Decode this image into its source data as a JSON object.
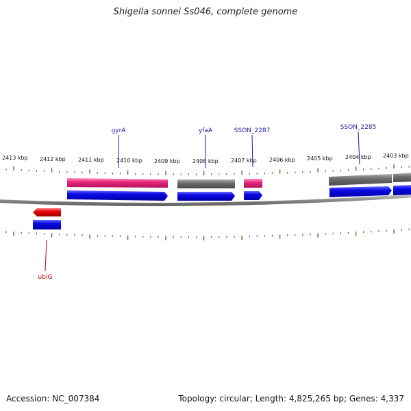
{
  "title": "Shigella sonnei Ss046, complete genome",
  "accession": "Accession: NC_007384",
  "stats": "Topology: circular; Length: 4,825,265 bp; Genes: 4,337",
  "colors": {
    "cds": "#0a0ae6",
    "gene_pink": "#e6287a",
    "gene_gray": "#6e6e6e",
    "gene_red": "#e60000",
    "tick": "#2e7d1e",
    "backbone": "#8c8c8c"
  },
  "ruler": {
    "labels": [
      "2413 kbp",
      "2412 kbp",
      "2411 kbp",
      "2410 kbp",
      "2409 kbp",
      "2408 kbp",
      "2407 kbp",
      "2406 kbp",
      "2405 kbp",
      "2404 kbp",
      "2403 kbp"
    ]
  },
  "genes": [
    {
      "name": "gyrA",
      "strand": "forward",
      "type": "gene",
      "color": "pink"
    },
    {
      "name": "yfaA",
      "strand": "forward",
      "type": "gene",
      "color": "gray"
    },
    {
      "name": "SSON_2287",
      "strand": "forward",
      "type": "gene",
      "color": "pink"
    },
    {
      "name": "SSON_2285",
      "strand": "forward",
      "type": "gene",
      "color": "gray"
    },
    {
      "name": "ubiG",
      "strand": "reverse",
      "type": "gene",
      "color": "red"
    }
  ]
}
